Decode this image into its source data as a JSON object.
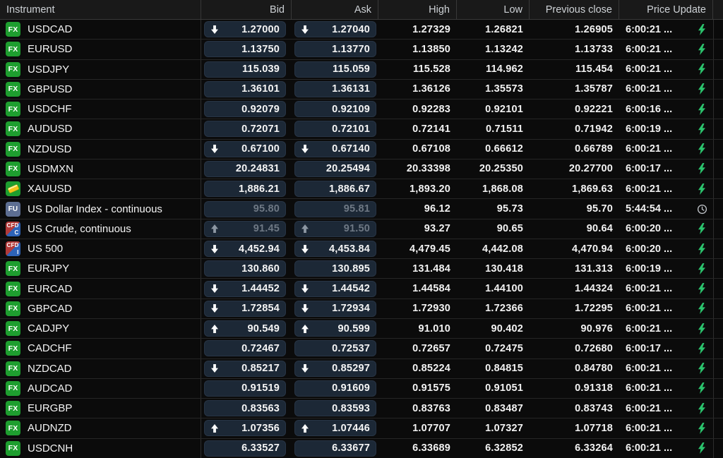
{
  "colors": {
    "accent_green": "#2bc36d",
    "badge_green": "#1e9e2f",
    "badge_slate": "#5d6e92",
    "badge_red": "#b23a3a",
    "badge_blue": "#2d63b8",
    "pill_background": "#1c2836",
    "dimmed_text": "#6e7884"
  },
  "header": {
    "instrument": "Instrument",
    "bid": "Bid",
    "ask": "Ask",
    "high": "High",
    "low": "Low",
    "prev_close": "Previous close",
    "price_update": "Price Update"
  },
  "table": {
    "rows": [
      {
        "badge": "FX",
        "badge_type": "fx",
        "name": "USDCAD",
        "bid": "1.27000",
        "bid_dir": "down",
        "ask": "1.27040",
        "ask_dir": "down",
        "high": "1.27329",
        "low": "1.26821",
        "prev_close": "1.26905",
        "update_time": "6:00:21 ...",
        "update_icon": "lightning",
        "dimmed": false
      },
      {
        "badge": "FX",
        "badge_type": "fx",
        "name": "EURUSD",
        "bid": "1.13750",
        "bid_dir": "",
        "ask": "1.13770",
        "ask_dir": "",
        "high": "1.13850",
        "low": "1.13242",
        "prev_close": "1.13733",
        "update_time": "6:00:21 ...",
        "update_icon": "lightning",
        "dimmed": false
      },
      {
        "badge": "FX",
        "badge_type": "fx",
        "name": "USDJPY",
        "bid": "115.039",
        "bid_dir": "",
        "ask": "115.059",
        "ask_dir": "",
        "high": "115.528",
        "low": "114.962",
        "prev_close": "115.454",
        "update_time": "6:00:21 ...",
        "update_icon": "lightning",
        "dimmed": false
      },
      {
        "badge": "FX",
        "badge_type": "fx",
        "name": "GBPUSD",
        "bid": "1.36101",
        "bid_dir": "",
        "ask": "1.36131",
        "ask_dir": "",
        "high": "1.36126",
        "low": "1.35573",
        "prev_close": "1.35787",
        "update_time": "6:00:21 ...",
        "update_icon": "lightning",
        "dimmed": false
      },
      {
        "badge": "FX",
        "badge_type": "fx",
        "name": "USDCHF",
        "bid": "0.92079",
        "bid_dir": "",
        "ask": "0.92109",
        "ask_dir": "",
        "high": "0.92283",
        "low": "0.92101",
        "prev_close": "0.92221",
        "update_time": "6:00:16 ...",
        "update_icon": "lightning",
        "dimmed": false
      },
      {
        "badge": "FX",
        "badge_type": "fx",
        "name": "AUDUSD",
        "bid": "0.72071",
        "bid_dir": "",
        "ask": "0.72101",
        "ask_dir": "",
        "high": "0.72141",
        "low": "0.71511",
        "prev_close": "0.71942",
        "update_time": "6:00:19 ...",
        "update_icon": "lightning",
        "dimmed": false
      },
      {
        "badge": "FX",
        "badge_type": "fx",
        "name": "NZDUSD",
        "bid": "0.67100",
        "bid_dir": "down",
        "ask": "0.67140",
        "ask_dir": "down",
        "high": "0.67108",
        "low": "0.66612",
        "prev_close": "0.66789",
        "update_time": "6:00:21 ...",
        "update_icon": "lightning",
        "dimmed": false
      },
      {
        "badge": "FX",
        "badge_type": "fx",
        "name": "USDMXN",
        "bid": "20.24831",
        "bid_dir": "",
        "ask": "20.25494",
        "ask_dir": "",
        "high": "20.33398",
        "low": "20.25350",
        "prev_close": "20.27700",
        "update_time": "6:00:17 ...",
        "update_icon": "lightning",
        "dimmed": false
      },
      {
        "badge": "",
        "badge_type": "gold",
        "name": "XAUUSD",
        "bid": "1,886.21",
        "bid_dir": "",
        "ask": "1,886.67",
        "ask_dir": "",
        "high": "1,893.20",
        "low": "1,868.08",
        "prev_close": "1,869.63",
        "update_time": "6:00:21 ...",
        "update_icon": "lightning",
        "dimmed": false
      },
      {
        "badge": "FU",
        "badge_type": "fu",
        "name": "US Dollar Index - continuous",
        "bid": "95.80",
        "bid_dir": "",
        "ask": "95.81",
        "ask_dir": "",
        "high": "96.12",
        "low": "95.73",
        "prev_close": "95.70",
        "update_time": "5:44:54 ...",
        "update_icon": "clock",
        "dimmed": true
      },
      {
        "badge": "CFD",
        "badge_type": "cfd-c",
        "badge_sub": "C",
        "name": "US Crude, continuous",
        "bid": "91.45",
        "bid_dir": "up",
        "ask": "91.50",
        "ask_dir": "up",
        "high": "93.27",
        "low": "90.65",
        "prev_close": "90.64",
        "update_time": "6:00:20 ...",
        "update_icon": "lightning",
        "dimmed": true
      },
      {
        "badge": "CFD",
        "badge_type": "cfd-i",
        "badge_sub": "I",
        "name": "US 500",
        "bid": "4,452.94",
        "bid_dir": "down",
        "ask": "4,453.84",
        "ask_dir": "down",
        "high": "4,479.45",
        "low": "4,442.08",
        "prev_close": "4,470.94",
        "update_time": "6:00:20 ...",
        "update_icon": "lightning",
        "dimmed": false
      },
      {
        "badge": "FX",
        "badge_type": "fx",
        "name": "EURJPY",
        "bid": "130.860",
        "bid_dir": "",
        "ask": "130.895",
        "ask_dir": "",
        "high": "131.484",
        "low": "130.418",
        "prev_close": "131.313",
        "update_time": "6:00:19 ...",
        "update_icon": "lightning",
        "dimmed": false
      },
      {
        "badge": "FX",
        "badge_type": "fx",
        "name": "EURCAD",
        "bid": "1.44452",
        "bid_dir": "down",
        "ask": "1.44542",
        "ask_dir": "down",
        "high": "1.44584",
        "low": "1.44100",
        "prev_close": "1.44324",
        "update_time": "6:00:21 ...",
        "update_icon": "lightning",
        "dimmed": false
      },
      {
        "badge": "FX",
        "badge_type": "fx",
        "name": "GBPCAD",
        "bid": "1.72854",
        "bid_dir": "down",
        "ask": "1.72934",
        "ask_dir": "down",
        "high": "1.72930",
        "low": "1.72366",
        "prev_close": "1.72295",
        "update_time": "6:00:21 ...",
        "update_icon": "lightning",
        "dimmed": false
      },
      {
        "badge": "FX",
        "badge_type": "fx",
        "name": "CADJPY",
        "bid": "90.549",
        "bid_dir": "up",
        "ask": "90.599",
        "ask_dir": "up",
        "high": "91.010",
        "low": "90.402",
        "prev_close": "90.976",
        "update_time": "6:00:21 ...",
        "update_icon": "lightning",
        "dimmed": false
      },
      {
        "badge": "FX",
        "badge_type": "fx",
        "name": "CADCHF",
        "bid": "0.72467",
        "bid_dir": "",
        "ask": "0.72537",
        "ask_dir": "",
        "high": "0.72657",
        "low": "0.72475",
        "prev_close": "0.72680",
        "update_time": "6:00:17 ...",
        "update_icon": "lightning",
        "dimmed": false
      },
      {
        "badge": "FX",
        "badge_type": "fx",
        "name": "NZDCAD",
        "bid": "0.85217",
        "bid_dir": "down",
        "ask": "0.85297",
        "ask_dir": "down",
        "high": "0.85224",
        "low": "0.84815",
        "prev_close": "0.84780",
        "update_time": "6:00:21 ...",
        "update_icon": "lightning",
        "dimmed": false
      },
      {
        "badge": "FX",
        "badge_type": "fx",
        "name": "AUDCAD",
        "bid": "0.91519",
        "bid_dir": "",
        "ask": "0.91609",
        "ask_dir": "",
        "high": "0.91575",
        "low": "0.91051",
        "prev_close": "0.91318",
        "update_time": "6:00:21 ...",
        "update_icon": "lightning",
        "dimmed": false
      },
      {
        "badge": "FX",
        "badge_type": "fx",
        "name": "EURGBP",
        "bid": "0.83563",
        "bid_dir": "",
        "ask": "0.83593",
        "ask_dir": "",
        "high": "0.83763",
        "low": "0.83487",
        "prev_close": "0.83743",
        "update_time": "6:00:21 ...",
        "update_icon": "lightning",
        "dimmed": false
      },
      {
        "badge": "FX",
        "badge_type": "fx",
        "name": "AUDNZD",
        "bid": "1.07356",
        "bid_dir": "up",
        "ask": "1.07446",
        "ask_dir": "up",
        "high": "1.07707",
        "low": "1.07327",
        "prev_close": "1.07718",
        "update_time": "6:00:21 ...",
        "update_icon": "lightning",
        "dimmed": false
      },
      {
        "badge": "FX",
        "badge_type": "fx",
        "name": "USDCNH",
        "bid": "6.33527",
        "bid_dir": "",
        "ask": "6.33677",
        "ask_dir": "",
        "high": "6.33689",
        "low": "6.32852",
        "prev_close": "6.33264",
        "update_time": "6:00:21 ...",
        "update_icon": "lightning",
        "dimmed": false
      }
    ]
  }
}
